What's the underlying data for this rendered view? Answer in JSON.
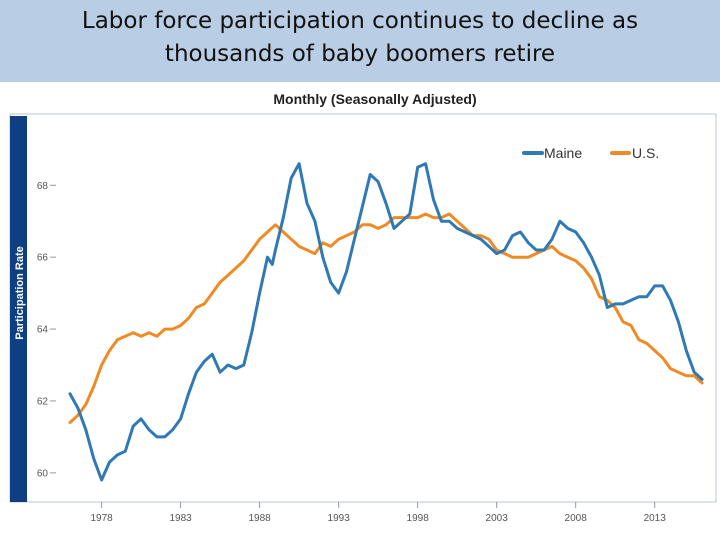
{
  "slide": {
    "title_line1": "Labor force participation continues to decline as",
    "title_line2": "thousands of baby boomers retire"
  },
  "colors": {
    "title_bar": "#b9cde5",
    "maine": "#2f79b5",
    "us": "#f08a24",
    "y_axis_band": "#0d3f82"
  },
  "chart_data": {
    "type": "line",
    "title": "Monthly (Seasonally Adjusted)",
    "ylabel": "Participation Rate",
    "xlabel": "",
    "xlim": [
      1976,
      2016.5
    ],
    "ylim": [
      59.3,
      69.9
    ],
    "x_ticks": [
      1978,
      1983,
      1988,
      1993,
      1998,
      2003,
      2008,
      2013
    ],
    "x_tick_labels": [
      "1978",
      "1983",
      "1988",
      "1993",
      "1998",
      "2003",
      "2008",
      "2013"
    ],
    "y_ticks": [
      60,
      62,
      64,
      66,
      68
    ],
    "y_tick_labels": [
      "60",
      "62",
      "64",
      "66",
      "68"
    ],
    "grid": false,
    "legend_position": "top-right",
    "series": [
      {
        "name": "Maine",
        "color": "#2f79b5",
        "x": [
          1976.0,
          1976.5,
          1977.0,
          1977.5,
          1978.0,
          1978.5,
          1979.0,
          1979.5,
          1980.0,
          1980.5,
          1981.0,
          1981.5,
          1982.0,
          1982.5,
          1983.0,
          1983.5,
          1984.0,
          1984.5,
          1985.0,
          1985.5,
          1986.0,
          1986.5,
          1987.0,
          1987.5,
          1988.0,
          1988.5,
          1988.8,
          1989.0,
          1989.5,
          1990.0,
          1990.5,
          1991.0,
          1991.5,
          1992.0,
          1992.5,
          1993.0,
          1993.5,
          1994.0,
          1994.5,
          1995.0,
          1995.5,
          1996.0,
          1996.5,
          1997.0,
          1997.5,
          1998.0,
          1998.5,
          1999.0,
          1999.5,
          2000.0,
          2000.5,
          2001.0,
          2001.5,
          2002.0,
          2002.5,
          2003.0,
          2003.5,
          2004.0,
          2004.5,
          2005.0,
          2005.5,
          2006.0,
          2006.5,
          2007.0,
          2007.5,
          2008.0,
          2008.5,
          2009.0,
          2009.5,
          2010.0,
          2010.5,
          2011.0,
          2011.5,
          2012.0,
          2012.5,
          2013.0,
          2013.5,
          2014.0,
          2014.5,
          2015.0,
          2015.5,
          2016.0
        ],
        "values": [
          62.2,
          61.8,
          61.2,
          60.4,
          59.8,
          60.3,
          60.5,
          60.6,
          61.3,
          61.5,
          61.2,
          61.0,
          61.0,
          61.2,
          61.5,
          62.2,
          62.8,
          63.1,
          63.3,
          62.8,
          63.0,
          62.9,
          63.0,
          63.9,
          65.0,
          66.0,
          65.8,
          66.2,
          67.1,
          68.2,
          68.6,
          67.5,
          67.0,
          66.0,
          65.3,
          65.0,
          65.6,
          66.5,
          67.4,
          68.3,
          68.1,
          67.5,
          66.8,
          67.0,
          67.2,
          68.5,
          68.6,
          67.6,
          67.0,
          67.0,
          66.8,
          66.7,
          66.6,
          66.5,
          66.3,
          66.1,
          66.2,
          66.6,
          66.7,
          66.4,
          66.2,
          66.2,
          66.5,
          67.0,
          66.8,
          66.7,
          66.4,
          66.0,
          65.5,
          64.6,
          64.7,
          64.7,
          64.8,
          64.9,
          64.9,
          65.2,
          65.2,
          64.8,
          64.2,
          63.4,
          62.8,
          62.6
        ]
      },
      {
        "name": "U.S.",
        "color": "#f08a24",
        "x": [
          1976.0,
          1976.5,
          1977.0,
          1977.5,
          1978.0,
          1978.5,
          1979.0,
          1979.5,
          1980.0,
          1980.5,
          1981.0,
          1981.5,
          1982.0,
          1982.5,
          1983.0,
          1983.5,
          1984.0,
          1984.5,
          1985.0,
          1985.5,
          1986.0,
          1986.5,
          1987.0,
          1987.5,
          1988.0,
          1988.5,
          1989.0,
          1989.5,
          1990.0,
          1990.5,
          1991.0,
          1991.5,
          1992.0,
          1992.5,
          1993.0,
          1993.5,
          1994.0,
          1994.5,
          1995.0,
          1995.5,
          1996.0,
          1996.5,
          1997.0,
          1997.5,
          1998.0,
          1998.5,
          1999.0,
          1999.5,
          2000.0,
          2000.5,
          2001.0,
          2001.5,
          2002.0,
          2002.5,
          2003.0,
          2003.5,
          2004.0,
          2004.5,
          2005.0,
          2005.5,
          2006.0,
          2006.5,
          2007.0,
          2007.5,
          2008.0,
          2008.5,
          2009.0,
          2009.5,
          2010.0,
          2010.5,
          2011.0,
          2011.5,
          2012.0,
          2012.5,
          2013.0,
          2013.5,
          2014.0,
          2014.5,
          2015.0,
          2015.5,
          2016.0
        ],
        "values": [
          61.4,
          61.6,
          61.9,
          62.4,
          63.0,
          63.4,
          63.7,
          63.8,
          63.9,
          63.8,
          63.9,
          63.8,
          64.0,
          64.0,
          64.1,
          64.3,
          64.6,
          64.7,
          65.0,
          65.3,
          65.5,
          65.7,
          65.9,
          66.2,
          66.5,
          66.7,
          66.9,
          66.7,
          66.5,
          66.3,
          66.2,
          66.1,
          66.4,
          66.3,
          66.5,
          66.6,
          66.7,
          66.9,
          66.9,
          66.8,
          66.9,
          67.1,
          67.1,
          67.1,
          67.1,
          67.2,
          67.1,
          67.1,
          67.2,
          67.0,
          66.8,
          66.6,
          66.6,
          66.5,
          66.2,
          66.1,
          66.0,
          66.0,
          66.0,
          66.1,
          66.2,
          66.3,
          66.1,
          66.0,
          65.9,
          65.7,
          65.4,
          64.9,
          64.8,
          64.6,
          64.2,
          64.1,
          63.7,
          63.6,
          63.4,
          63.2,
          62.9,
          62.8,
          62.7,
          62.7,
          62.5
        ]
      }
    ]
  }
}
